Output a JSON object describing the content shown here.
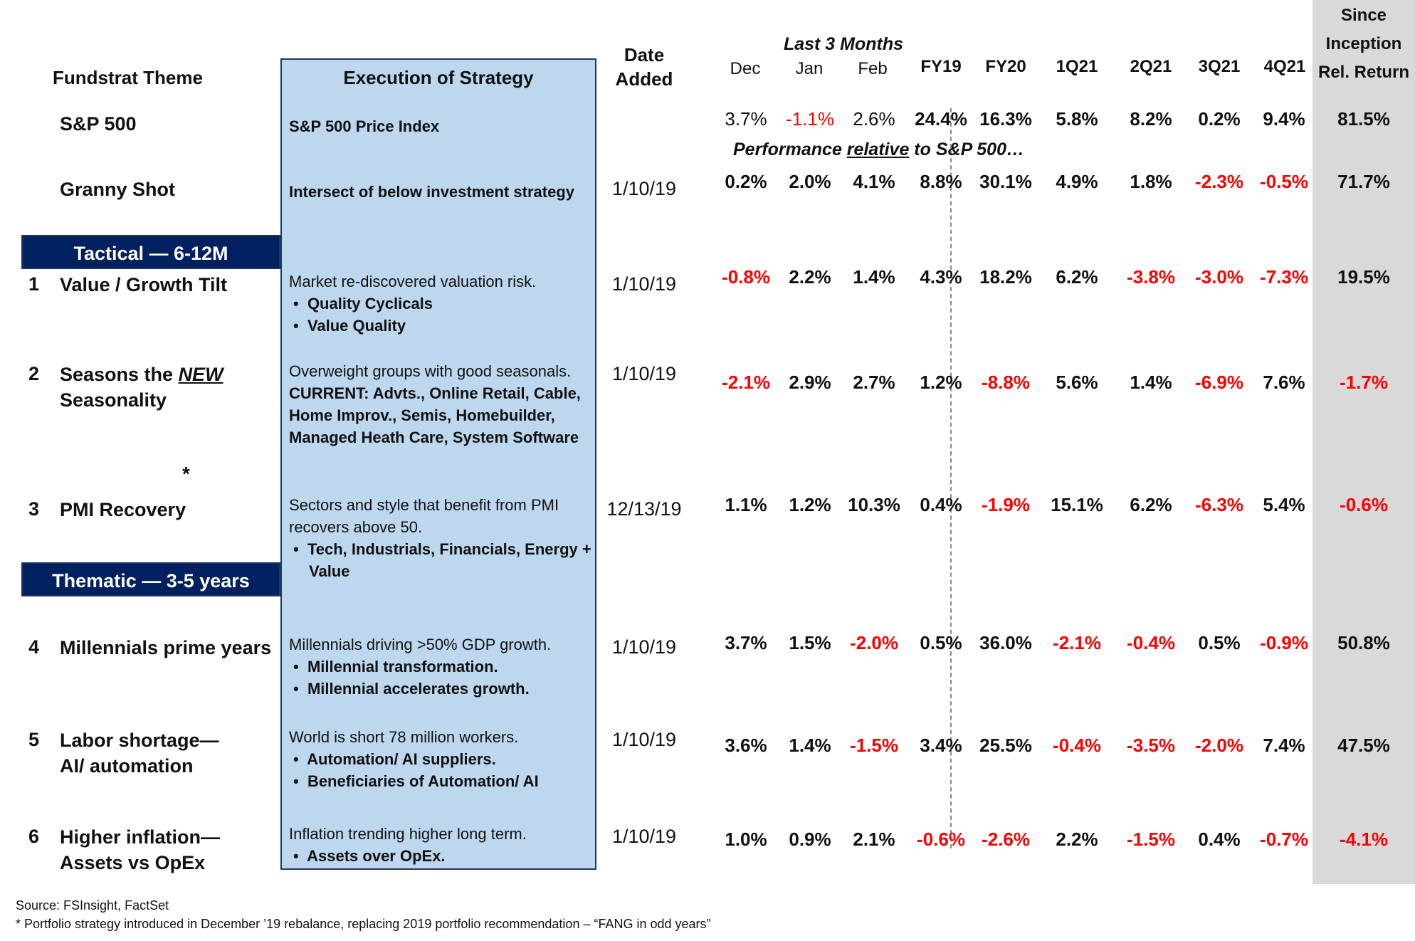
{
  "headers": {
    "theme": "Fundstrat Theme",
    "execution": "Execution of Strategy",
    "date_added": [
      "Date",
      "Added"
    ],
    "last3": "Last 3 Months",
    "months": [
      "Dec",
      "Jan",
      "Feb"
    ],
    "periods": [
      "FY19",
      "FY20",
      "1Q21",
      "2Q21",
      "3Q21",
      "4Q21"
    ],
    "since": [
      "Since",
      "Inception",
      "Rel. Return"
    ]
  },
  "relative_note": [
    "Performance ",
    "relative",
    " to S&P 500…"
  ],
  "banners": {
    "tactical": "Tactical — 6-12M",
    "thematic": "Thematic  — 3-5 years"
  },
  "rows": [
    {
      "num": "",
      "theme": "S&P 500",
      "date": "",
      "exec_bold": "S&P 500 Price Index",
      "values": [
        "3.7%",
        "-1.1%",
        "2.6%",
        "24.4%",
        "16.3%",
        "5.8%",
        "8.2%",
        "0.2%",
        "9.4%",
        "81.5%"
      ]
    },
    {
      "num": "",
      "theme": "Granny Shot",
      "date": "1/10/19",
      "exec_bold": "Intersect of below investment strategy",
      "values": [
        "0.2%",
        "2.0%",
        "4.1%",
        "8.8%",
        "30.1%",
        "4.9%",
        "1.8%",
        "-2.3%",
        "-0.5%",
        "71.7%"
      ]
    },
    {
      "num": "1",
      "theme": "Value / Growth Tilt",
      "date": "1/10/19",
      "exec_text": "Market re-discovered valuation risk.",
      "bullets": [
        "Quality Cyclicals",
        "Value Quality"
      ],
      "values": [
        "-0.8%",
        "2.2%",
        "1.4%",
        "4.3%",
        "18.2%",
        "6.2%",
        "-3.8%",
        "-3.0%",
        "-7.3%",
        "19.5%"
      ]
    },
    {
      "num": "2",
      "theme_a": "Seasons the ",
      "theme_em": "NEW",
      "theme_b": "Seasonality",
      "date": "1/10/19",
      "exec_text": "Overweight groups with good seasonals.",
      "exec_current": "CURRENT: Advts., Online Retail, Cable, Home Improv., Semis, Homebuilder, Managed Heath Care, System Software",
      "values": [
        "-2.1%",
        "2.9%",
        "2.7%",
        "1.2%",
        "-8.8%",
        "5.6%",
        "1.4%",
        "-6.9%",
        "7.6%",
        "-1.7%"
      ]
    },
    {
      "num": "3",
      "theme": "PMI Recovery",
      "date": "12/13/19",
      "asterisk": "*",
      "exec_text": "Sectors and style that benefit from PMI recovers above 50.",
      "bullets": [
        "Tech, Industrials, Financials, Energy + Value"
      ],
      "values": [
        "1.1%",
        "1.2%",
        "10.3%",
        "0.4%",
        "-1.9%",
        "15.1%",
        "6.2%",
        "-6.3%",
        "5.4%",
        "-0.6%"
      ]
    },
    {
      "num": "4",
      "theme": "Millennials prime years",
      "date": "1/10/19",
      "exec_text": "Millennials driving >50% GDP growth.",
      "bullets": [
        "Millennial transformation.",
        "Millennial accelerates growth."
      ],
      "values": [
        "3.7%",
        "1.5%",
        "-2.0%",
        "0.5%",
        "36.0%",
        "-2.1%",
        "-0.4%",
        "0.5%",
        "-0.9%",
        "50.8%"
      ]
    },
    {
      "num": "5",
      "theme_a": "Labor shortage—",
      "theme_b": "AI/ automation",
      "date": "1/10/19",
      "exec_text": "World is short 78 million workers.",
      "bullets": [
        "Automation/ AI suppliers.",
        "Beneficiaries of Automation/ AI"
      ],
      "values": [
        "3.6%",
        "1.4%",
        "-1.5%",
        "3.4%",
        "25.5%",
        "-0.4%",
        "-3.5%",
        "-2.0%",
        "7.4%",
        "47.5%"
      ]
    },
    {
      "num": "6",
      "theme_a": "Higher inflation—",
      "theme_b": "Assets vs OpEx",
      "date": "1/10/19",
      "exec_text": "Inflation trending higher long term.",
      "bullets": [
        "Assets over OpEx."
      ],
      "values": [
        "1.0%",
        "0.9%",
        "2.1%",
        "-0.6%",
        "-2.6%",
        "2.2%",
        "-1.5%",
        "0.4%",
        "-0.7%",
        "-4.1%"
      ]
    }
  ],
  "footnotes": {
    "source": "Source: FSInsight, FactSet",
    "note": "* Portfolio strategy introduced in December ’19 rebalance, replacing 2019 portfolio recommendation – “FANG in odd years”"
  }
}
